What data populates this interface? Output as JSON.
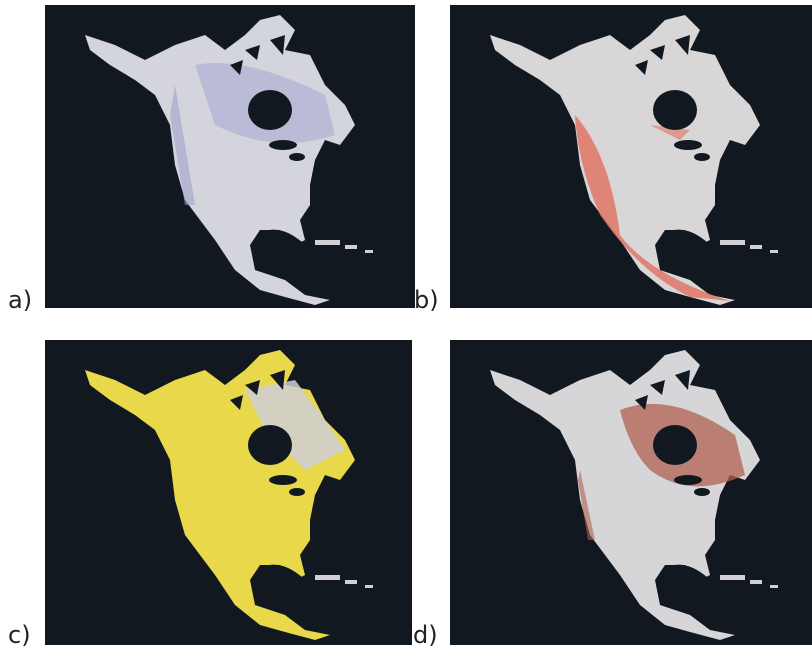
{
  "panels": [
    {
      "label": "a)"
    },
    {
      "label": "b)"
    },
    {
      "label": "c)"
    },
    {
      "label": "d)"
    }
  ]
}
